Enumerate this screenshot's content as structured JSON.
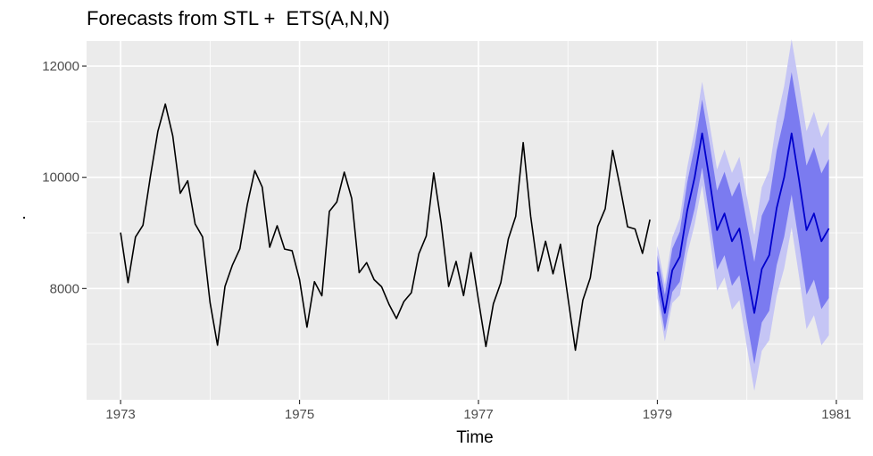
{
  "chart_data": {
    "type": "line",
    "title": "Forecasts from STL +  ETS(A,N,N)",
    "xlabel": "Time",
    "ylabel": ".",
    "xlim": [
      1972.62,
      1981.3
    ],
    "ylim": [
      6000,
      12450
    ],
    "x_ticks": [
      1973,
      1975,
      1977,
      1979,
      1981
    ],
    "x_tick_labels": [
      "1973",
      "1975",
      "1977",
      "1979",
      "1981"
    ],
    "y_ticks": [
      8000,
      10000,
      12000
    ],
    "y_tick_labels": [
      "8000",
      "10000",
      "12000"
    ],
    "grid": true,
    "colors": {
      "panel": "#ebebeb",
      "grid": "#ffffff",
      "history_line": "#000000",
      "forecast_line": "#0000cc",
      "band_80": "#7b7bf0",
      "band_95": "#c5c5f5"
    },
    "series": [
      {
        "name": "observed",
        "start": 1973,
        "frequency": 12,
        "values": [
          9007,
          8106,
          8928,
          9137,
          10017,
          10826,
          11317,
          10744,
          9713,
          9938,
          9161,
          8927,
          7750,
          6981,
          8038,
          8422,
          8714,
          9512,
          10120,
          9823,
          8743,
          9129,
          8710,
          8680,
          8162,
          7306,
          8124,
          7870,
          9387,
          9556,
          10093,
          9620,
          8285,
          8466,
          8160,
          8034,
          7717,
          7461,
          7767,
          7925,
          8623,
          8945,
          10078,
          9179,
          8037,
          8488,
          7874,
          8647,
          7792,
          6957,
          7726,
          8106,
          8890,
          9299,
          10625,
          9302,
          8314,
          8850,
          8265,
          8796,
          7836,
          6892,
          7791,
          8192,
          9115,
          9434,
          10484,
          9827,
          9110,
          9070,
          8633,
          9240
        ]
      },
      {
        "name": "forecast",
        "start": 1979,
        "frequency": 12,
        "mean": [
          8300,
          7560,
          8330,
          8570,
          9400,
          10000,
          10790,
          9950,
          9050,
          9350,
          8850,
          9080,
          8300,
          7560,
          8350,
          8600,
          9450,
          10000,
          10790,
          9950,
          9050,
          9350,
          8850,
          9080
        ],
        "lo80": [
          8000,
          7230,
          7940,
          8120,
          8890,
          9440,
          10180,
          9290,
          8340,
          8600,
          8050,
          8240,
          7420,
          6640,
          7390,
          7600,
          8420,
          8930,
          9690,
          8820,
          7890,
          8160,
          7630,
          7830
        ],
        "hi80": [
          8600,
          7890,
          8720,
          9020,
          9910,
          10560,
          11400,
          10610,
          9760,
          10100,
          9650,
          9920,
          9180,
          8480,
          9310,
          9600,
          10480,
          11070,
          11890,
          11080,
          10210,
          10540,
          10070,
          10330
        ],
        "lo95": [
          7830,
          7050,
          7740,
          7880,
          8620,
          9150,
          9860,
          8940,
          7960,
          8200,
          7620,
          7790,
          6950,
          6160,
          6880,
          7070,
          7870,
          8360,
          9100,
          8220,
          7270,
          7520,
          6980,
          7160
        ],
        "hi95": [
          8770,
          8070,
          8920,
          9260,
          10180,
          10850,
          11720,
          10960,
          10140,
          10500,
          10080,
          10370,
          9650,
          8960,
          9820,
          10130,
          11030,
          11640,
          12480,
          11680,
          10830,
          11180,
          10720,
          11000
        ]
      }
    ]
  }
}
